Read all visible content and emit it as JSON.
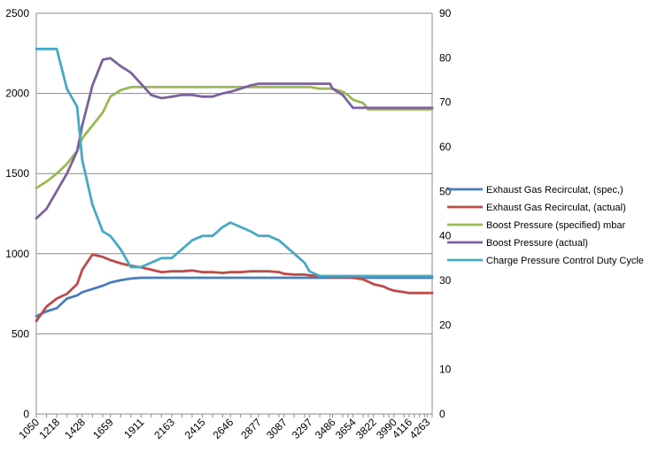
{
  "chart_data": {
    "type": "line",
    "x": [
      1050,
      1134,
      1218,
      1302,
      1386,
      1428,
      1512,
      1596,
      1659,
      1743,
      1827,
      1911,
      1995,
      2079,
      2163,
      2247,
      2331,
      2415,
      2499,
      2583,
      2646,
      2730,
      2814,
      2877,
      2961,
      3045,
      3087,
      3171,
      3255,
      3297,
      3381,
      3465,
      3486,
      3570,
      3612,
      3654,
      3738,
      3780,
      3822,
      3906,
      3948,
      3990,
      4074,
      4116,
      4158,
      4200,
      4242,
      4263,
      4305
    ],
    "x_tick_labels": [
      "1050",
      "1218",
      "1428",
      "1659",
      "1911",
      "2163",
      "2415",
      "2646",
      "2877",
      "3087",
      "3297",
      "3486",
      "3654",
      "3822",
      "3990",
      "4116",
      "4263"
    ],
    "y_left": {
      "min": 0,
      "max": 2500,
      "ticks": [
        "0",
        "500",
        "1000",
        "1500",
        "2000",
        "2500"
      ]
    },
    "y_right": {
      "min": 0,
      "max": 90,
      "ticks": [
        "0",
        "10",
        "20",
        "30",
        "40",
        "50",
        "60",
        "70",
        "80",
        "90"
      ]
    },
    "grid": true,
    "legend_position": "right",
    "series": [
      {
        "name": "Exhaust Gas Recirculat, (spec,)",
        "color": "#4a7ebb",
        "axis": "left",
        "values": [
          610,
          640,
          660,
          720,
          740,
          760,
          780,
          800,
          820,
          835,
          845,
          850,
          850,
          850,
          850,
          850,
          850,
          850,
          850,
          850,
          850,
          850,
          850,
          850,
          850,
          850,
          850,
          850,
          850,
          850,
          850,
          850,
          850,
          850,
          850,
          850,
          850,
          850,
          850,
          850,
          850,
          850,
          850,
          850,
          850,
          850,
          850,
          850,
          850
        ]
      },
      {
        "name": "Exhaust Gas Recirculat, (actual)",
        "color": "#be4b48",
        "axis": "left",
        "values": [
          580,
          670,
          720,
          750,
          810,
          900,
          995,
          980,
          960,
          940,
          925,
          915,
          900,
          885,
          890,
          890,
          895,
          885,
          885,
          880,
          885,
          885,
          890,
          890,
          890,
          885,
          875,
          870,
          870,
          865,
          860,
          855,
          855,
          855,
          855,
          850,
          840,
          825,
          810,
          795,
          780,
          770,
          760,
          755,
          755,
          755,
          755,
          755,
          755
        ]
      },
      {
        "name": "Boost Pressure (specified)  mbar",
        "color": "#98b954",
        "axis": "left",
        "values": [
          1410,
          1450,
          1500,
          1560,
          1640,
          1720,
          1800,
          1880,
          1980,
          2020,
          2040,
          2040,
          2040,
          2040,
          2040,
          2040,
          2040,
          2040,
          2040,
          2040,
          2040,
          2040,
          2040,
          2040,
          2040,
          2040,
          2040,
          2040,
          2040,
          2040,
          2030,
          2030,
          2030,
          2010,
          1990,
          1960,
          1940,
          1900,
          1900,
          1900,
          1900,
          1900,
          1900,
          1900,
          1900,
          1900,
          1900,
          1900,
          1900
        ]
      },
      {
        "name": "Boost Pressure (actual)",
        "color": "#7d60a0",
        "axis": "left",
        "values": [
          1220,
          1280,
          1390,
          1500,
          1640,
          1800,
          2050,
          2210,
          2220,
          2170,
          2130,
          2060,
          1990,
          1970,
          1980,
          1990,
          1990,
          1980,
          1980,
          2000,
          2010,
          2030,
          2050,
          2060,
          2060,
          2060,
          2060,
          2060,
          2060,
          2060,
          2060,
          2060,
          2030,
          1990,
          1950,
          1910,
          1910,
          1910,
          1910,
          1910,
          1910,
          1910,
          1910,
          1910,
          1910,
          1910,
          1910,
          1910,
          1910
        ]
      },
      {
        "name": "Charge Pressure Control Duty Cycle",
        "color": "#46aac5",
        "axis": "right",
        "values": [
          82,
          82,
          82,
          73,
          69,
          57,
          47,
          41,
          40,
          37,
          33,
          33,
          34,
          35,
          35,
          37,
          39,
          40,
          40,
          42,
          43,
          42,
          41,
          40,
          40,
          39,
          38,
          36,
          34,
          32,
          31,
          31,
          31,
          31,
          31,
          31,
          31,
          31,
          31,
          31,
          31,
          31,
          31,
          31,
          31,
          31,
          31,
          31,
          31
        ]
      }
    ]
  }
}
